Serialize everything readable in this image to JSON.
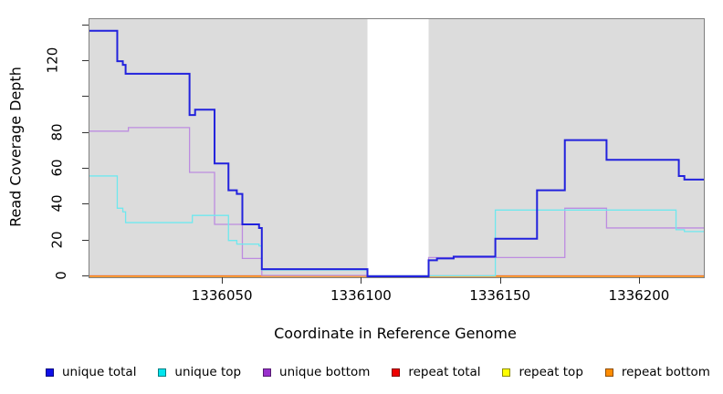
{
  "chart_data": {
    "type": "line",
    "style": "step",
    "title": "",
    "xlabel": "Coordinate in Reference Genome",
    "ylabel": "Read Coverage Depth",
    "x_range": [
      1336002,
      1336223
    ],
    "y_range": [
      0,
      143.5
    ],
    "x_ticks": [
      1336050,
      1336100,
      1336150,
      1336200
    ],
    "x_tick_labels": [
      "1336050",
      "1336100",
      "1336150",
      "1336200"
    ],
    "y_ticks": [
      0,
      20,
      40,
      60,
      80,
      100,
      120,
      140
    ],
    "y_tick_labels": [
      "0",
      "20",
      "40",
      "60",
      "80",
      "",
      "120",
      ""
    ],
    "plot_bg": "#dcdcdc",
    "page_bg": "#ffffff",
    "masked_region": {
      "from": 1336102,
      "to": 1336124,
      "color": "#ffffff"
    },
    "legend_position": "bottom",
    "grid": false,
    "series": [
      {
        "name": "unique total",
        "color": "#0f0fe8",
        "line_color": "#2222dd",
        "steps": [
          [
            1336002,
            137
          ],
          [
            1336012,
            120
          ],
          [
            1336014,
            118
          ],
          [
            1336015,
            113
          ],
          [
            1336038,
            90
          ],
          [
            1336040,
            93
          ],
          [
            1336047,
            63
          ],
          [
            1336052,
            48
          ],
          [
            1336055,
            46
          ],
          [
            1336057,
            29
          ],
          [
            1336063,
            27
          ],
          [
            1336064,
            4
          ],
          [
            1336102,
            0
          ],
          [
            1336124,
            9
          ],
          [
            1336127,
            10
          ],
          [
            1336133,
            11
          ],
          [
            1336148,
            21
          ],
          [
            1336163,
            48
          ],
          [
            1336173,
            76
          ],
          [
            1336188,
            65
          ],
          [
            1336214,
            56
          ],
          [
            1336216,
            54
          ],
          [
            1336223,
            54
          ]
        ]
      },
      {
        "name": "unique top",
        "color": "#00e5ee",
        "line_color": "#6fe8ee",
        "steps": [
          [
            1336002,
            56
          ],
          [
            1336012,
            38
          ],
          [
            1336014,
            36
          ],
          [
            1336015,
            30
          ],
          [
            1336039,
            34
          ],
          [
            1336052,
            20
          ],
          [
            1336055,
            18
          ],
          [
            1336063,
            17
          ],
          [
            1336064,
            3.6
          ],
          [
            1336102,
            0.3
          ],
          [
            1336148,
            37
          ],
          [
            1336213,
            26
          ],
          [
            1336216,
            25
          ],
          [
            1336223,
            25
          ]
        ]
      },
      {
        "name": "unique bottom",
        "color": "#9a30cd",
        "line_color": "#bd8ce0",
        "steps": [
          [
            1336002,
            81
          ],
          [
            1336016,
            83
          ],
          [
            1336038,
            58
          ],
          [
            1336047,
            29
          ],
          [
            1336057,
            10
          ],
          [
            1336064,
            0.5
          ],
          [
            1336124,
            10.5
          ],
          [
            1336173,
            38
          ],
          [
            1336188,
            27
          ],
          [
            1336223,
            27
          ]
        ]
      },
      {
        "name": "repeat total",
        "color": "#ee0000",
        "line_color": "#dd3333",
        "steps": [
          [
            1336002,
            0.25
          ],
          [
            1336223,
            0.25
          ]
        ]
      },
      {
        "name": "repeat top",
        "color": "#ffff00",
        "line_color": "#f2e723",
        "steps": [
          [
            1336002,
            0.1
          ],
          [
            1336223,
            0.1
          ]
        ]
      },
      {
        "name": "repeat bottom",
        "color": "#ff8c00",
        "line_color": "#ff9413",
        "steps": [
          [
            1336002,
            0
          ],
          [
            1336223,
            0
          ]
        ]
      }
    ]
  }
}
